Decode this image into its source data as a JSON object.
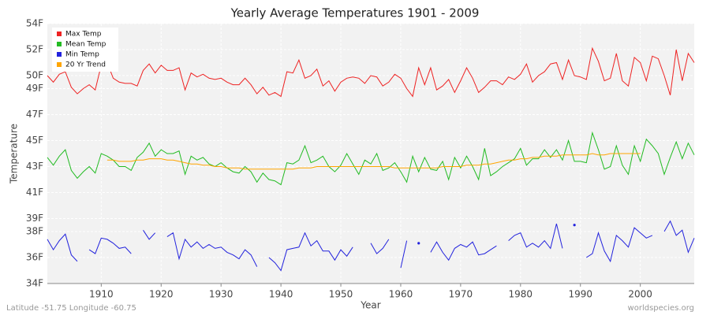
{
  "chart_data": {
    "type": "line",
    "title": "Yearly Average Temperatures 1901 - 2009",
    "xlabel": "Year",
    "ylabel": "Temperature",
    "footer_left": "Latitude -51.75 Longitude -60.75",
    "footer_right": "worldspecies.org",
    "legend": "upper left",
    "grid": true,
    "xlim": [
      1901,
      2009
    ],
    "xticks": [
      1910,
      1920,
      1930,
      1940,
      1950,
      1960,
      1970,
      1980,
      1990,
      2000
    ],
    "ylim": [
      34,
      54
    ],
    "yticks": [
      {
        "value": 34,
        "label": "34F"
      },
      {
        "value": 36,
        "label": "36F"
      },
      {
        "value": 38,
        "label": "38F"
      },
      {
        "value": 39,
        "label": "39F"
      },
      {
        "value": 41,
        "label": "41F"
      },
      {
        "value": 43,
        "label": "43F"
      },
      {
        "value": 45,
        "label": "45F"
      },
      {
        "value": 47,
        "label": "47F"
      },
      {
        "value": 49,
        "label": "49F"
      },
      {
        "value": 50,
        "label": "50F"
      },
      {
        "value": 52,
        "label": "52F"
      },
      {
        "value": 54,
        "label": "54F"
      }
    ],
    "x": [
      1901,
      1902,
      1903,
      1904,
      1905,
      1906,
      1907,
      1908,
      1909,
      1910,
      1911,
      1912,
      1913,
      1914,
      1915,
      1916,
      1917,
      1918,
      1919,
      1920,
      1921,
      1922,
      1923,
      1924,
      1925,
      1926,
      1927,
      1928,
      1929,
      1930,
      1931,
      1932,
      1933,
      1934,
      1935,
      1936,
      1937,
      1938,
      1939,
      1940,
      1941,
      1942,
      1943,
      1944,
      1945,
      1946,
      1947,
      1948,
      1949,
      1950,
      1951,
      1952,
      1953,
      1954,
      1955,
      1956,
      1957,
      1958,
      1959,
      1960,
      1961,
      1962,
      1963,
      1964,
      1965,
      1966,
      1967,
      1968,
      1969,
      1970,
      1971,
      1972,
      1973,
      1974,
      1975,
      1976,
      1977,
      1978,
      1979,
      1980,
      1981,
      1982,
      1983,
      1984,
      1985,
      1986,
      1987,
      1988,
      1989,
      1990,
      1991,
      1992,
      1993,
      1994,
      1995,
      1996,
      1997,
      1998,
      1999,
      2000,
      2001,
      2002,
      2003,
      2004,
      2005,
      2006,
      2007,
      2008,
      2009
    ],
    "series": [
      {
        "name": "Max Temp",
        "color": "#ee2222",
        "values": [
          50.0,
          49.5,
          50.1,
          50.3,
          49.1,
          48.6,
          49.0,
          49.3,
          48.9,
          50.8,
          51.0,
          49.8,
          49.5,
          49.4,
          49.4,
          49.2,
          50.4,
          50.9,
          50.2,
          50.8,
          50.4,
          50.4,
          50.6,
          48.9,
          50.2,
          49.9,
          50.1,
          49.8,
          49.7,
          49.8,
          49.5,
          49.3,
          49.3,
          49.8,
          49.3,
          48.6,
          49.1,
          48.5,
          48.7,
          48.4,
          50.3,
          50.2,
          51.2,
          49.8,
          50.0,
          50.5,
          49.2,
          49.6,
          48.8,
          49.5,
          49.8,
          49.9,
          49.8,
          49.4,
          50.0,
          49.9,
          49.2,
          49.5,
          50.1,
          49.8,
          49.0,
          48.4,
          50.6,
          49.3,
          50.6,
          48.9,
          49.2,
          49.7,
          48.7,
          49.6,
          50.6,
          49.8,
          48.7,
          49.1,
          49.6,
          49.6,
          49.3,
          49.9,
          49.7,
          50.1,
          50.9,
          49.5,
          50.0,
          50.3,
          50.9,
          51.0,
          49.7,
          51.2,
          50.0,
          49.9,
          49.7,
          52.1,
          51.1,
          49.6,
          49.8,
          51.7,
          49.6,
          49.2,
          51.4,
          51.0,
          49.6,
          51.5,
          51.3,
          50.0,
          48.5,
          52.0,
          49.6,
          51.7,
          51.0
        ]
      },
      {
        "name": "Mean Temp",
        "color": "#22bb22",
        "values": [
          43.7,
          43.1,
          43.8,
          44.3,
          42.7,
          42.1,
          42.6,
          43.0,
          42.5,
          44.0,
          43.8,
          43.5,
          43.0,
          43.0,
          42.7,
          43.7,
          44.1,
          44.8,
          43.8,
          44.3,
          44.0,
          44.0,
          44.2,
          42.4,
          43.8,
          43.5,
          43.7,
          43.2,
          43.0,
          43.3,
          42.9,
          42.6,
          42.5,
          43.0,
          42.6,
          41.8,
          42.5,
          42.0,
          41.9,
          41.6,
          43.3,
          43.2,
          43.5,
          44.6,
          43.3,
          43.5,
          43.8,
          43.0,
          42.6,
          43.1,
          44.0,
          43.2,
          42.4,
          43.5,
          43.2,
          44.0,
          42.7,
          42.9,
          43.3,
          42.6,
          41.8,
          43.8,
          42.6,
          43.7,
          42.8,
          42.7,
          43.4,
          42.0,
          43.7,
          42.9,
          43.8,
          43.0,
          42.0,
          44.4,
          42.3,
          42.6,
          43.0,
          43.3,
          43.6,
          44.4,
          43.1,
          43.6,
          43.6,
          44.3,
          43.7,
          44.3,
          43.5,
          45.0,
          43.4,
          43.4,
          43.3,
          45.6,
          44.3,
          42.8,
          43.0,
          44.6,
          43.1,
          42.4,
          44.6,
          43.4,
          45.1,
          44.6,
          44.0,
          42.4,
          43.7,
          44.9,
          43.6,
          44.8,
          43.9
        ]
      },
      {
        "name": "Min Temp",
        "color": "#2222dd",
        "values": [
          37.4,
          36.6,
          37.3,
          37.8,
          36.2,
          35.7,
          null,
          36.6,
          36.3,
          37.5,
          37.4,
          37.1,
          36.7,
          36.8,
          36.3,
          null,
          38.1,
          37.4,
          37.9,
          null,
          37.6,
          37.9,
          35.9,
          37.4,
          36.8,
          37.2,
          36.7,
          37.0,
          36.7,
          36.8,
          36.4,
          36.2,
          35.9,
          36.6,
          36.2,
          35.3,
          null,
          36.0,
          35.6,
          35.0,
          36.6,
          36.7,
          36.8,
          37.9,
          36.9,
          37.3,
          36.5,
          36.5,
          35.8,
          36.6,
          36.1,
          36.8,
          null,
          null,
          37.1,
          36.3,
          36.7,
          37.4,
          null,
          35.2,
          37.3,
          null,
          37.1,
          null,
          36.4,
          37.2,
          36.4,
          35.8,
          36.7,
          37.0,
          36.8,
          37.2,
          36.2,
          36.3,
          36.6,
          36.9,
          null,
          37.3,
          37.7,
          37.9,
          36.8,
          37.1,
          36.8,
          37.3,
          36.7,
          38.6,
          36.7,
          null,
          38.5,
          null,
          36.0,
          36.3,
          37.9,
          36.5,
          35.7,
          37.7,
          37.3,
          36.8,
          38.3,
          37.9,
          37.5,
          37.7,
          null,
          38.0,
          38.8,
          37.7,
          38.1,
          36.4,
          37.5
        ]
      },
      {
        "name": "20 Yr Trend",
        "color": "#ffa500",
        "values": [
          null,
          null,
          null,
          null,
          null,
          null,
          null,
          null,
          null,
          null,
          43.5,
          43.5,
          43.4,
          43.4,
          43.4,
          43.5,
          43.5,
          43.6,
          43.6,
          43.6,
          43.5,
          43.5,
          43.4,
          43.3,
          43.2,
          43.2,
          43.1,
          43.1,
          43.0,
          43.0,
          42.9,
          42.9,
          42.9,
          42.8,
          42.8,
          42.8,
          42.8,
          42.8,
          42.8,
          42.8,
          42.8,
          42.8,
          42.9,
          42.9,
          42.9,
          43.0,
          43.0,
          43.0,
          43.0,
          43.0,
          43.0,
          43.0,
          43.0,
          43.0,
          43.0,
          43.0,
          43.0,
          43.0,
          42.9,
          42.9,
          42.9,
          42.9,
          42.9,
          42.9,
          42.9,
          42.9,
          43.0,
          43.0,
          43.0,
          43.0,
          43.1,
          43.1,
          43.1,
          43.2,
          43.2,
          43.3,
          43.4,
          43.5,
          43.5,
          43.6,
          43.6,
          43.7,
          43.7,
          43.8,
          43.8,
          43.8,
          43.9,
          43.9,
          43.9,
          43.9,
          43.9,
          44.0,
          43.9,
          43.9,
          44.0,
          44.0,
          44.0,
          44.0,
          44.0,
          44.0,
          null,
          null,
          null,
          null,
          null,
          null,
          null,
          null,
          null
        ]
      }
    ]
  }
}
